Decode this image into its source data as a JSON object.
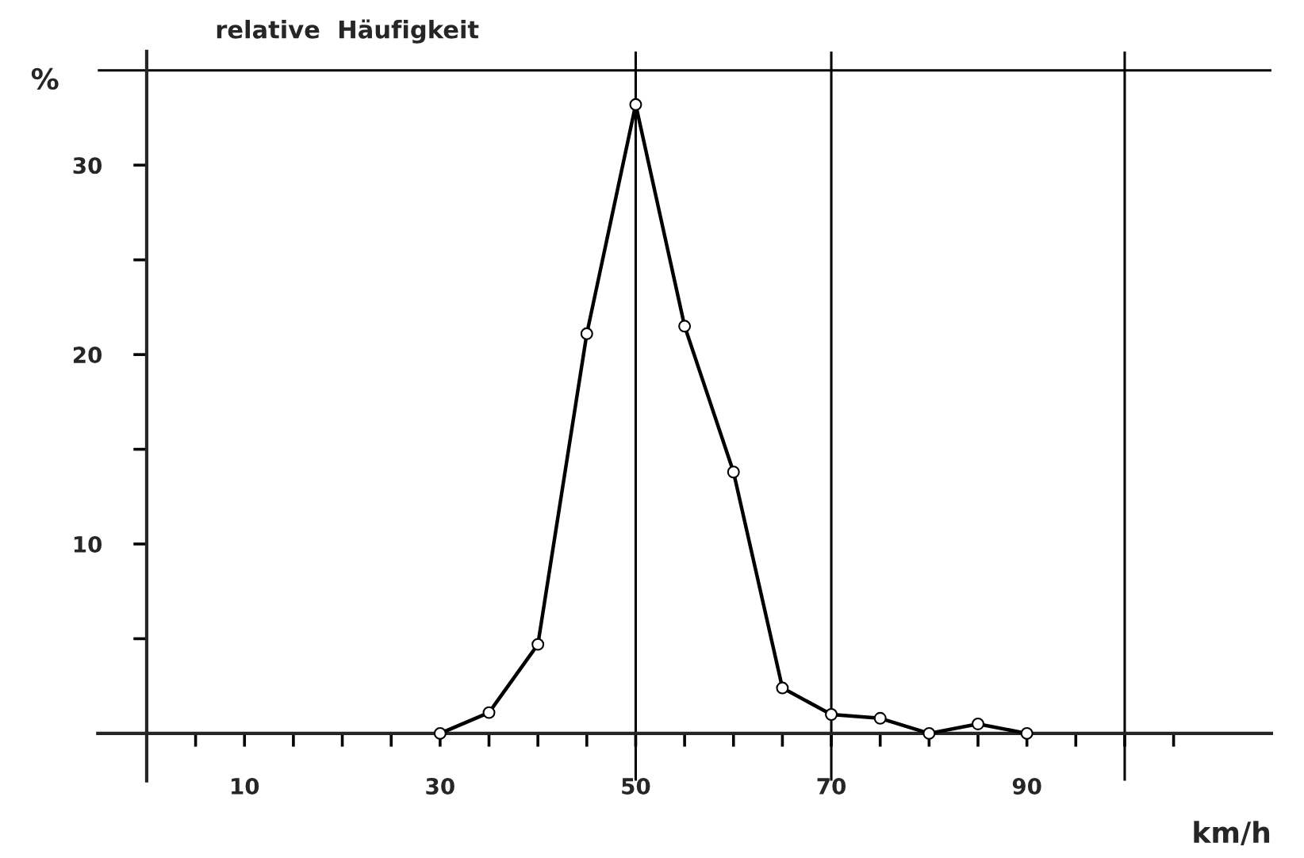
{
  "chart_data": {
    "type": "line",
    "title": "relative  Häufigkeit",
    "xlabel": "km/h",
    "ylabel": "%",
    "x": [
      30,
      35,
      40,
      45,
      50,
      55,
      60,
      65,
      70,
      75,
      80,
      85,
      90
    ],
    "series": [
      {
        "color": "#000000",
        "values": [
          0,
          1.1,
          4.7,
          21.1,
          33.2,
          21.5,
          13.8,
          2.4,
          1.0,
          0.8,
          0,
          0.5,
          0
        ]
      }
    ],
    "xlim": [
      -5,
      115
    ],
    "ylim": [
      -2.5,
      36
    ],
    "xticks": [
      {
        "value": 5,
        "label": null
      },
      10,
      {
        "value": 15,
        "label": null
      },
      {
        "value": 20,
        "label": null
      },
      {
        "value": 25,
        "label": null
      },
      30,
      {
        "value": 35,
        "label": null
      },
      {
        "value": 40,
        "label": null
      },
      {
        "value": 45,
        "label": null
      },
      50,
      {
        "value": 55,
        "label": null
      },
      {
        "value": 60,
        "label": null
      },
      {
        "value": 65,
        "label": null
      },
      70,
      {
        "value": 75,
        "label": null
      },
      {
        "value": 80,
        "label": null
      },
      {
        "value": 85,
        "label": null
      },
      90,
      {
        "value": 95,
        "label": null
      },
      {
        "value": 100,
        "label": null
      },
      {
        "value": 105,
        "label": null
      }
    ],
    "yticks": [
      {
        "value": 5,
        "label": null
      },
      10,
      {
        "value": 15,
        "label": null
      },
      20,
      {
        "value": 25,
        "label": null
      },
      30
    ],
    "ref_lines": [
      {
        "axis": "x",
        "value": 50,
        "color": "#000000"
      },
      {
        "axis": "x",
        "value": 70,
        "color": "#000000"
      },
      {
        "axis": "x",
        "value": 100,
        "color": "#000000"
      },
      {
        "axis": "y",
        "value": 35,
        "color": "#000000"
      }
    ],
    "marker": "circle",
    "line_style": "solid",
    "grid": false,
    "legend": false
  }
}
